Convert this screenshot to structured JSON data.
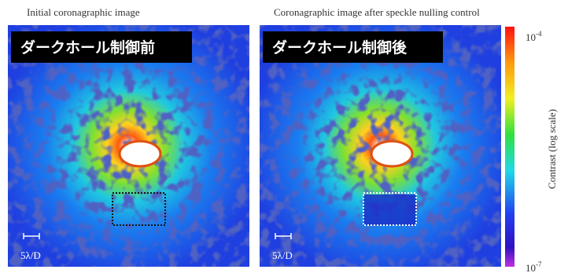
{
  "figure": {
    "panels": [
      {
        "caption": "Initial coronagraphic image",
        "label": "ダークホール制御前",
        "scale": "5λ/D"
      },
      {
        "caption": "Coronagraphic image  after speckle nulling control",
        "label": "ダークホール制御後",
        "scale": "5λ/D"
      }
    ],
    "colorbar": {
      "title": "Contrast (log scale)",
      "ticks": [
        {
          "base": "10",
          "exponent": "-4"
        },
        {
          "base": "10",
          "exponent": "-7"
        }
      ]
    }
  }
}
